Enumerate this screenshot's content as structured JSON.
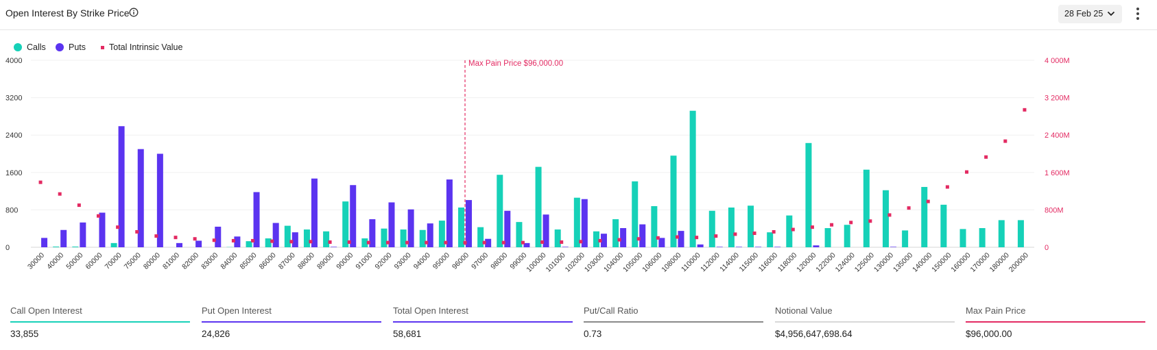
{
  "header": {
    "title": "Open Interest By Strike Price",
    "date_value": "28 Feb 25"
  },
  "colors": {
    "calls": "#16d1b8",
    "puts": "#5b34f0",
    "intrinsic": "#e32a62",
    "ratio": "#8a8a8a",
    "notional": "#d8d8d8"
  },
  "legend": {
    "calls": "Calls",
    "puts": "Puts",
    "intrinsic": "Total Intrinsic Value"
  },
  "chart_data": {
    "type": "bar",
    "y_left": {
      "min": 0,
      "max": 4000,
      "ticks": [
        0,
        800,
        1600,
        2400,
        3200,
        4000
      ],
      "tick_labels": [
        "0",
        "800",
        "1600",
        "2400",
        "3200",
        "4000"
      ]
    },
    "y_right": {
      "min": 0,
      "max": 4000,
      "unit": "M",
      "ticks": [
        0,
        800,
        1600,
        2400,
        3200,
        4000
      ],
      "tick_labels": [
        "0",
        "800M",
        "1 600M",
        "2 400M",
        "3 200M",
        "4 000M"
      ]
    },
    "categories": [
      "30000",
      "40000",
      "50000",
      "60000",
      "70000",
      "75000",
      "80000",
      "81000",
      "82000",
      "83000",
      "84000",
      "85000",
      "86000",
      "87000",
      "88000",
      "89000",
      "90000",
      "91000",
      "92000",
      "93000",
      "94000",
      "95000",
      "96000",
      "97000",
      "98000",
      "99000",
      "100000",
      "101000",
      "102000",
      "103000",
      "104000",
      "105000",
      "106000",
      "108000",
      "110000",
      "112000",
      "114000",
      "115000",
      "116000",
      "118000",
      "120000",
      "122000",
      "124000",
      "125000",
      "130000",
      "135000",
      "140000",
      "150000",
      "160000",
      "170000",
      "180000",
      "200000"
    ],
    "series": [
      {
        "name": "Calls",
        "values": [
          0,
          15,
          15,
          0,
          90,
          0,
          0,
          0,
          0,
          0,
          5,
          130,
          190,
          460,
          380,
          340,
          980,
          190,
          400,
          380,
          370,
          570,
          850,
          430,
          1550,
          540,
          1720,
          380,
          1060,
          340,
          600,
          1410,
          880,
          1960,
          2920,
          780,
          850,
          890,
          320,
          680,
          2230,
          410,
          480,
          1660,
          1220,
          360,
          1290,
          910,
          390,
          410,
          580,
          580
        ]
      },
      {
        "name": "Puts",
        "values": [
          200,
          370,
          530,
          740,
          2590,
          2100,
          2000,
          90,
          140,
          440,
          230,
          1180,
          520,
          320,
          1470,
          10,
          1330,
          600,
          960,
          810,
          510,
          1450,
          1010,
          180,
          780,
          90,
          700,
          10,
          1030,
          290,
          410,
          490,
          200,
          350,
          60,
          10,
          10,
          10,
          10,
          0,
          40,
          0,
          0,
          0,
          10,
          0,
          0,
          0,
          0,
          0,
          0,
          0
        ]
      },
      {
        "name": "Total Intrinsic Value",
        "values": [
          1390,
          1140,
          900,
          670,
          430,
          330,
          240,
          210,
          180,
          150,
          140,
          140,
          130,
          120,
          120,
          110,
          110,
          100,
          100,
          100,
          100,
          100,
          100,
          100,
          100,
          100,
          110,
          110,
          120,
          140,
          160,
          180,
          200,
          220,
          210,
          240,
          280,
          300,
          330,
          380,
          430,
          480,
          530,
          560,
          690,
          840,
          980,
          1290,
          1610,
          1930,
          2270,
          2940
        ]
      }
    ],
    "annotations": {
      "max_pain_label": "Max Pain Price $96,000.00",
      "max_pain_category": "96000"
    }
  },
  "stats": [
    {
      "label": "Call Open Interest",
      "value": "33,855",
      "color": "#16d1b8"
    },
    {
      "label": "Put Open Interest",
      "value": "24,826",
      "color": "#5b34f0"
    },
    {
      "label": "Total Open Interest",
      "value": "58,681",
      "color": "#5b34f0"
    },
    {
      "label": "Put/Call Ratio",
      "value": "0.73",
      "color": "#8a8a8a"
    },
    {
      "label": "Notional Value",
      "value": "$4,956,647,698.64",
      "color": "#d8d8d8"
    },
    {
      "label": "Max Pain Price",
      "value": "$96,000.00",
      "color": "#e32a62"
    }
  ]
}
